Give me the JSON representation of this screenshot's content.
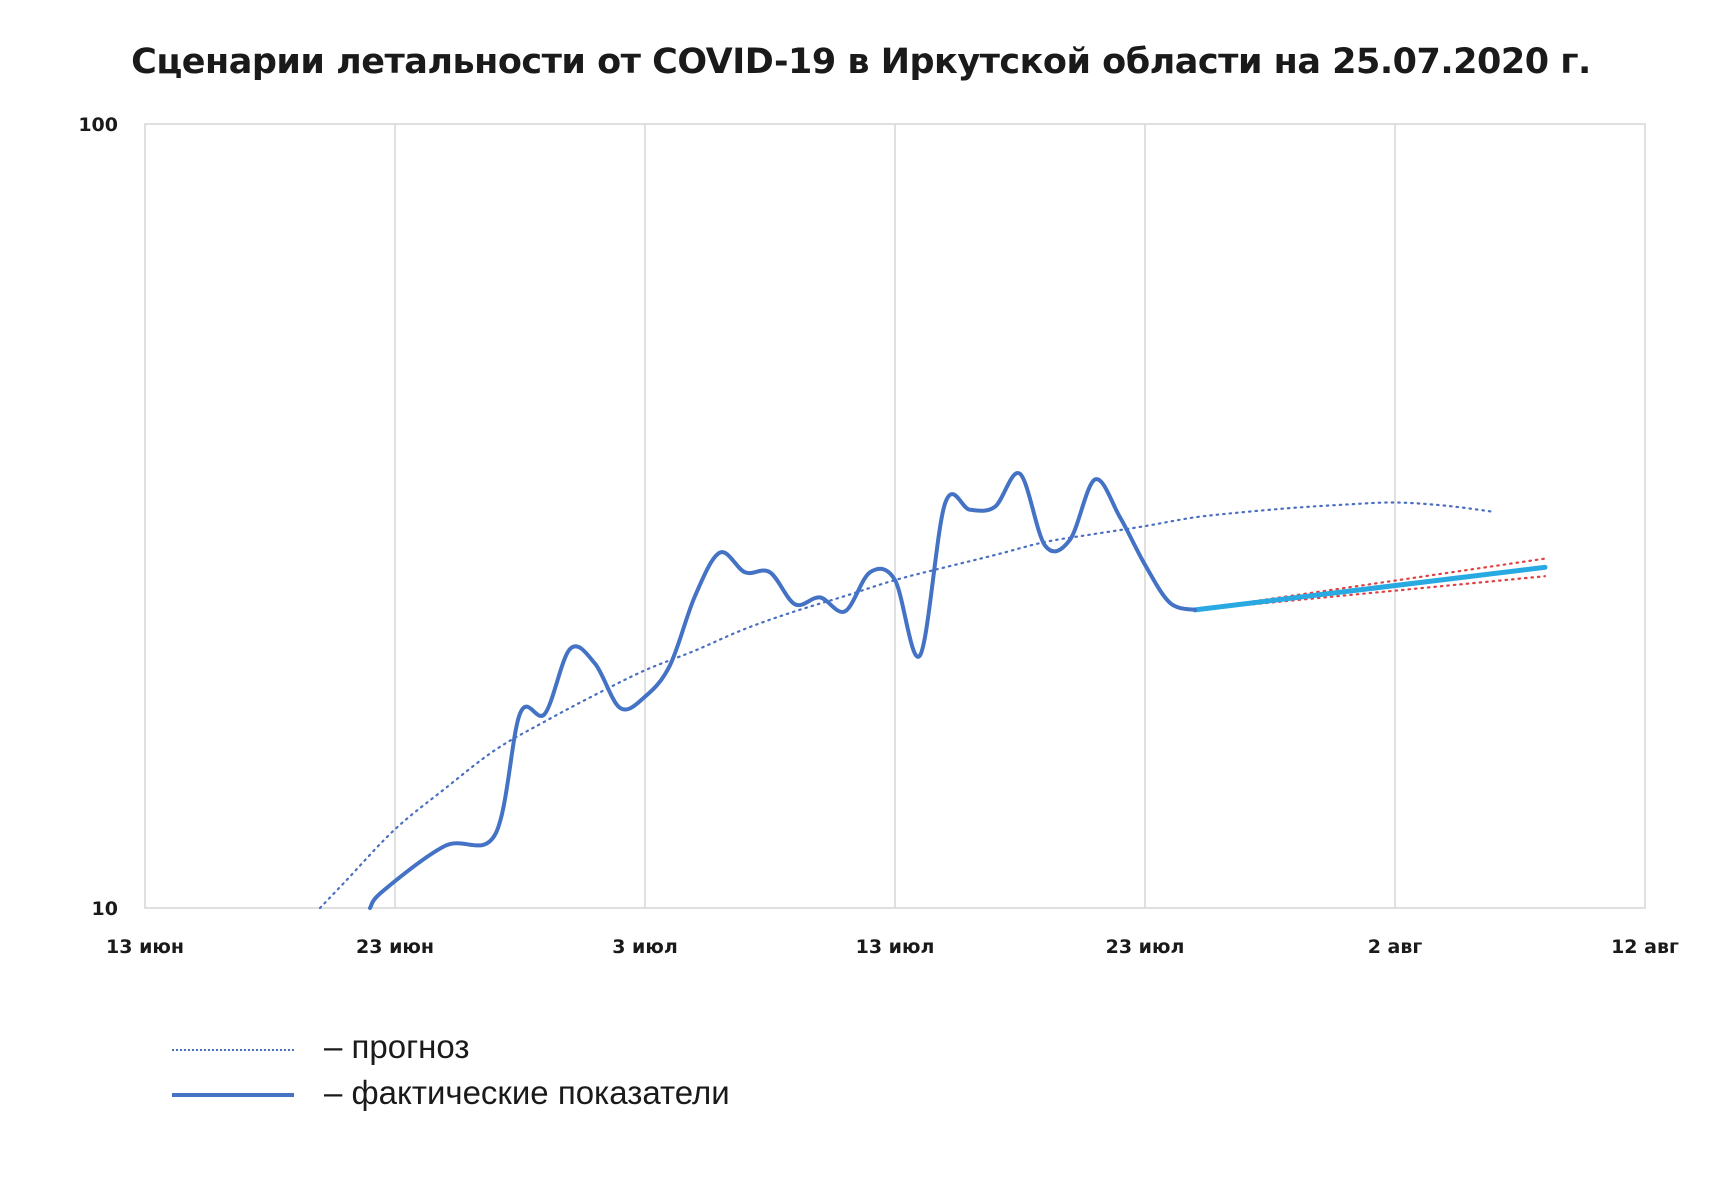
{
  "chart_data": {
    "type": "line",
    "title": "Сценарии летальности от COVID-19 в Иркутской области  на 25.07.2020 г.",
    "xlabel": "",
    "ylabel": "",
    "x_axis": {
      "type": "date",
      "range": [
        "2020-06-13",
        "2020-08-12"
      ],
      "ticks": [
        {
          "date": "2020-06-13",
          "label": "13 июн"
        },
        {
          "date": "2020-06-23",
          "label": "23 июн"
        },
        {
          "date": "2020-07-03",
          "label": "3 июл"
        },
        {
          "date": "2020-07-13",
          "label": "13 июл"
        },
        {
          "date": "2020-07-23",
          "label": "23 июл"
        },
        {
          "date": "2020-08-02",
          "label": "2 авг"
        },
        {
          "date": "2020-08-12",
          "label": "12 авг"
        }
      ]
    },
    "y_axis": {
      "scale": "log",
      "range": [
        10,
        100
      ],
      "ticks": [
        {
          "value": 10,
          "label": "10"
        },
        {
          "value": 100,
          "label": "100"
        }
      ]
    },
    "grid": {
      "vertical": true,
      "horizontal": false
    },
    "series": [
      {
        "name": "прогноз",
        "style": "dotted",
        "color": "#4a6fc0",
        "points": [
          [
            "2020-06-20",
            10.0
          ],
          [
            "2020-06-21",
            10.8
          ],
          [
            "2020-06-23",
            12.6
          ],
          [
            "2020-06-25",
            14.2
          ],
          [
            "2020-06-27",
            15.9
          ],
          [
            "2020-06-29",
            17.3
          ],
          [
            "2020-07-01",
            18.7
          ],
          [
            "2020-07-03",
            20.1
          ],
          [
            "2020-07-05",
            21.3
          ],
          [
            "2020-07-07",
            22.7
          ],
          [
            "2020-07-09",
            23.9
          ],
          [
            "2020-07-11",
            25.0
          ],
          [
            "2020-07-13",
            26.2
          ],
          [
            "2020-07-15",
            27.2
          ],
          [
            "2020-07-17",
            28.2
          ],
          [
            "2020-07-19",
            29.3
          ],
          [
            "2020-07-21",
            30.0
          ],
          [
            "2020-07-23",
            30.7
          ],
          [
            "2020-07-25",
            31.5
          ],
          [
            "2020-07-27",
            32.0
          ],
          [
            "2020-07-29",
            32.4
          ],
          [
            "2020-07-31",
            32.7
          ],
          [
            "2020-08-02",
            32.9
          ],
          [
            "2020-08-04",
            32.6
          ],
          [
            "2020-08-06",
            32.0
          ]
        ]
      },
      {
        "name": "фактические показатели",
        "style": "solid",
        "color": "#4472c4",
        "points": [
          [
            "2020-06-22",
            10.0
          ],
          [
            "2020-06-22.5",
            10.5
          ],
          [
            "2020-06-25",
            12.0
          ],
          [
            "2020-06-27",
            12.4
          ],
          [
            "2020-06-28",
            17.7
          ],
          [
            "2020-06-29",
            17.7
          ],
          [
            "2020-06-30",
            21.4
          ],
          [
            "2020-07-01",
            20.5
          ],
          [
            "2020-07-02",
            18.0
          ],
          [
            "2020-07-03",
            18.6
          ],
          [
            "2020-07-04",
            20.4
          ],
          [
            "2020-07-05",
            25.0
          ],
          [
            "2020-07-06",
            28.4
          ],
          [
            "2020-07-07",
            26.8
          ],
          [
            "2020-07-08",
            26.8
          ],
          [
            "2020-07-09",
            24.4
          ],
          [
            "2020-07-10",
            24.9
          ],
          [
            "2020-07-11",
            23.9
          ],
          [
            "2020-07-12",
            26.8
          ],
          [
            "2020-07-13",
            26.2
          ],
          [
            "2020-07-14",
            21.0
          ],
          [
            "2020-07-15",
            32.8
          ],
          [
            "2020-07-16",
            32.2
          ],
          [
            "2020-07-17",
            32.5
          ],
          [
            "2020-07-18",
            35.8
          ],
          [
            "2020-07-19",
            29.0
          ],
          [
            "2020-07-20",
            29.5
          ],
          [
            "2020-07-21",
            35.2
          ],
          [
            "2020-07-22",
            31.5
          ],
          [
            "2020-07-23",
            27.4
          ],
          [
            "2020-07-24",
            24.5
          ],
          [
            "2020-07-25",
            24.0
          ]
        ]
      },
      {
        "style": "solid",
        "color": "#29a9e1",
        "points": [
          [
            "2020-07-25",
            24.0
          ],
          [
            "2020-08-08",
            27.2
          ]
        ]
      },
      {
        "style": "dotted",
        "color": "#e04040",
        "points": [
          [
            "2020-07-25",
            24.0
          ],
          [
            "2020-08-08",
            27.9
          ]
        ]
      },
      {
        "style": "dotted",
        "color": "#e04040",
        "points": [
          [
            "2020-07-25",
            24.0
          ],
          [
            "2020-08-08",
            26.5
          ]
        ]
      }
    ],
    "legend": {
      "placement": "bottom-left",
      "entries": [
        {
          "swatch": "dotted",
          "label": "– прогноз"
        },
        {
          "swatch": "solid",
          "label": "– фактические показатели"
        }
      ]
    }
  }
}
